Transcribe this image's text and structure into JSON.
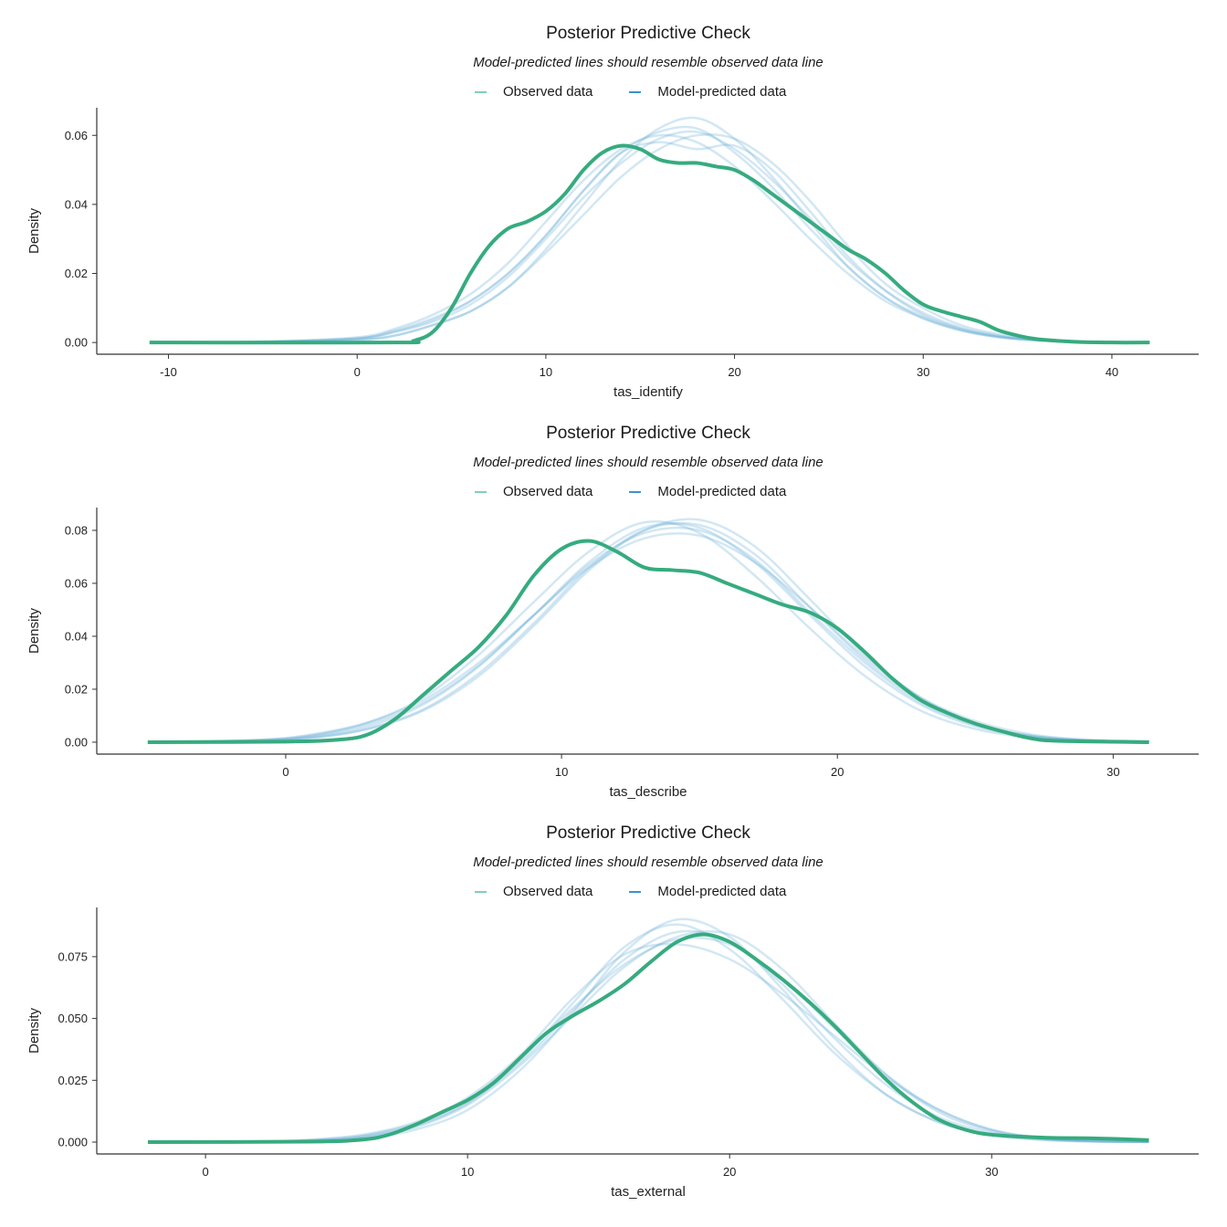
{
  "colors": {
    "observed": "#36ab7f",
    "observed_legend": "#7fd1b0",
    "predicted": "#6baed6",
    "predicted_legend": "#3a94c8"
  },
  "chart_data": [
    {
      "type": "line",
      "title": "Posterior Predictive Check",
      "subtitle": "Model-predicted lines should resemble observed data line",
      "legend": {
        "position": "top",
        "items": [
          "Observed data",
          "Model-predicted data"
        ]
      },
      "xlabel": "tas_identify",
      "ylabel": "Density",
      "xlim": [
        -13.8,
        44.6
      ],
      "ylim": [
        -0.0034,
        0.068
      ],
      "grid": false,
      "xticks": [
        -10,
        0,
        10,
        20,
        30,
        40
      ],
      "xtick_labels": [
        "-10",
        "0",
        "10",
        "20",
        "30",
        "40"
      ],
      "yticks": [
        0,
        0.02,
        0.04,
        0.06
      ],
      "ytick_labels": [
        "0.00",
        "0.02",
        "0.04",
        "0.06"
      ],
      "observed": {
        "name": "Observed data",
        "x": [
          -11,
          2,
          3,
          4,
          5,
          6,
          7,
          8,
          9,
          10,
          11,
          12,
          13,
          14,
          15,
          16,
          17,
          18,
          19,
          20,
          21,
          22,
          23,
          24,
          25,
          26,
          27,
          28,
          29,
          30,
          31,
          32,
          33,
          34,
          35,
          36,
          38,
          40,
          42
        ],
        "y": [
          0,
          0,
          0.0005,
          0.003,
          0.01,
          0.02,
          0.028,
          0.033,
          0.035,
          0.038,
          0.043,
          0.05,
          0.055,
          0.057,
          0.056,
          0.053,
          0.052,
          0.052,
          0.051,
          0.05,
          0.047,
          0.043,
          0.039,
          0.035,
          0.031,
          0.027,
          0.024,
          0.02,
          0.015,
          0.011,
          0.009,
          0.0075,
          0.006,
          0.0035,
          0.002,
          0.001,
          0.0002,
          0,
          0
        ]
      },
      "predicted": {
        "name": "Model-predicted data",
        "x": [
          -11,
          -5,
          0,
          2,
          4,
          6,
          8,
          10,
          12,
          14,
          16,
          18,
          20,
          22,
          24,
          26,
          28,
          30,
          32,
          34,
          36,
          38,
          42
        ],
        "draws": [
          [
            0,
            0.0002,
            0.001,
            0.003,
            0.006,
            0.011,
            0.019,
            0.03,
            0.042,
            0.052,
            0.059,
            0.061,
            0.056,
            0.047,
            0.036,
            0.024,
            0.015,
            0.0086,
            0.0043,
            0.002,
            0.0008,
            0.0003,
            0
          ],
          [
            0,
            0.0001,
            0.0008,
            0.002,
            0.005,
            0.009,
            0.016,
            0.027,
            0.04,
            0.053,
            0.062,
            0.065,
            0.059,
            0.048,
            0.035,
            0.022,
            0.013,
            0.007,
            0.0035,
            0.0015,
            0.0006,
            0.0002,
            0
          ],
          [
            0,
            0.0003,
            0.0015,
            0.004,
            0.008,
            0.014,
            0.023,
            0.035,
            0.047,
            0.056,
            0.06,
            0.058,
            0.051,
            0.041,
            0.03,
            0.02,
            0.012,
            0.007,
            0.0035,
            0.0016,
            0.0006,
            0.0002,
            0
          ],
          [
            0,
            0.0002,
            0.0012,
            0.0035,
            0.007,
            0.012,
            0.02,
            0.031,
            0.044,
            0.055,
            0.058,
            0.056,
            0.057,
            0.05,
            0.038,
            0.025,
            0.015,
            0.008,
            0.004,
            0.0018,
            0.0007,
            0.0002,
            0
          ],
          [
            0,
            0.0001,
            0.0007,
            0.002,
            0.005,
            0.009,
            0.016,
            0.026,
            0.037,
            0.048,
            0.056,
            0.06,
            0.059,
            0.052,
            0.041,
            0.028,
            0.017,
            0.01,
            0.005,
            0.0024,
            0.001,
            0.0003,
            0
          ],
          [
            0,
            0.0002,
            0.0012,
            0.0032,
            0.0065,
            0.012,
            0.02,
            0.031,
            0.044,
            0.055,
            0.061,
            0.062,
            0.055,
            0.045,
            0.033,
            0.022,
            0.013,
            0.0075,
            0.0038,
            0.0017,
            0.0007,
            0.0002,
            0
          ]
        ]
      }
    },
    {
      "type": "line",
      "title": "Posterior Predictive Check",
      "subtitle": "Model-predicted lines should resemble observed data line",
      "legend": {
        "position": "top",
        "items": [
          "Observed data",
          "Model-predicted data"
        ]
      },
      "xlabel": "tas_describe",
      "ylabel": "Density",
      "xlim": [
        -6.85,
        33.1
      ],
      "ylim": [
        -0.0045,
        0.0886
      ],
      "grid": false,
      "xticks": [
        0,
        10,
        20,
        30
      ],
      "xtick_labels": [
        "0",
        "10",
        "20",
        "30"
      ],
      "yticks": [
        0,
        0.02,
        0.04,
        0.06,
        0.08
      ],
      "ytick_labels": [
        "0.00",
        "0.02",
        "0.04",
        "0.06",
        "0.08"
      ],
      "observed": {
        "name": "Observed data",
        "x": [
          -5,
          0,
          2,
          3,
          4,
          5,
          6,
          7,
          8,
          9,
          10,
          11,
          12,
          13,
          14,
          15,
          16,
          17,
          18,
          19,
          20,
          21,
          22,
          23,
          24,
          25,
          26,
          27,
          28,
          31.3
        ],
        "y": [
          0,
          0.0002,
          0.001,
          0.003,
          0.009,
          0.018,
          0.027,
          0.036,
          0.048,
          0.063,
          0.073,
          0.076,
          0.072,
          0.066,
          0.065,
          0.064,
          0.06,
          0.056,
          0.052,
          0.049,
          0.043,
          0.034,
          0.024,
          0.016,
          0.011,
          0.007,
          0.004,
          0.0015,
          0.0005,
          0
        ]
      },
      "predicted": {
        "name": "Model-predicted data",
        "x": [
          -5,
          -1,
          1,
          3,
          5,
          7,
          9,
          11,
          13,
          15,
          17,
          19,
          21,
          23,
          25,
          27,
          29,
          31.3
        ],
        "draws": [
          [
            0,
            0.0006,
            0.0021,
            0.006,
            0.0143,
            0.0286,
            0.048,
            0.068,
            0.081,
            0.081,
            0.068,
            0.048,
            0.0286,
            0.0143,
            0.006,
            0.0021,
            0.0006,
            0.0002
          ],
          [
            0,
            0.0004,
            0.0016,
            0.005,
            0.012,
            0.025,
            0.044,
            0.065,
            0.08,
            0.084,
            0.074,
            0.054,
            0.033,
            0.017,
            0.007,
            0.0025,
            0.0007,
            0.0002
          ],
          [
            0,
            0.0009,
            0.003,
            0.0075,
            0.016,
            0.03,
            0.048,
            0.066,
            0.077,
            0.078,
            0.068,
            0.051,
            0.032,
            0.017,
            0.008,
            0.003,
            0.001,
            0.0003
          ],
          [
            0,
            0.0008,
            0.0027,
            0.0075,
            0.017,
            0.033,
            0.053,
            0.072,
            0.083,
            0.079,
            0.063,
            0.043,
            0.025,
            0.012,
            0.005,
            0.0017,
            0.0005,
            0.0001
          ],
          [
            0,
            0.0005,
            0.0018,
            0.0052,
            0.0125,
            0.026,
            0.045,
            0.066,
            0.08,
            0.082,
            0.071,
            0.051,
            0.031,
            0.016,
            0.0068,
            0.0024,
            0.0007,
            0.0002
          ],
          [
            0,
            0.0007,
            0.0024,
            0.0068,
            0.015,
            0.029,
            0.048,
            0.067,
            0.079,
            0.08,
            0.069,
            0.049,
            0.03,
            0.015,
            0.0065,
            0.0023,
            0.0007,
            0.0002
          ]
        ]
      }
    },
    {
      "type": "line",
      "title": "Posterior Predictive Check",
      "subtitle": "Model-predicted lines should resemble observed data line",
      "legend": {
        "position": "top",
        "items": [
          "Observed data",
          "Model-predicted data"
        ]
      },
      "xlabel": "tas_external",
      "ylabel": "Density",
      "xlim": [
        -4.15,
        37.9
      ],
      "ylim": [
        -0.0048,
        0.0949
      ],
      "grid": false,
      "xticks": [
        0,
        10,
        20,
        30
      ],
      "xtick_labels": [
        "0",
        "10",
        "20",
        "30"
      ],
      "yticks": [
        0,
        0.025,
        0.05,
        0.075
      ],
      "ytick_labels": [
        "0.000",
        "0.025",
        "0.050",
        "0.075"
      ],
      "observed": {
        "name": "Observed data",
        "x": [
          -2.2,
          4,
          6,
          7,
          8,
          9,
          10,
          11,
          12,
          13,
          14,
          15,
          16,
          17,
          18,
          19,
          20,
          21,
          22,
          23,
          24,
          25,
          26,
          27,
          28,
          29,
          30,
          32,
          34,
          36
        ],
        "y": [
          0,
          0.0002,
          0.001,
          0.003,
          0.007,
          0.012,
          0.017,
          0.024,
          0.034,
          0.044,
          0.051,
          0.057,
          0.064,
          0.073,
          0.081,
          0.084,
          0.081,
          0.074,
          0.066,
          0.057,
          0.047,
          0.036,
          0.025,
          0.016,
          0.009,
          0.005,
          0.003,
          0.0018,
          0.0015,
          0.0008
        ]
      },
      "predicted": {
        "name": "Model-predicted data",
        "x": [
          -2.2,
          2,
          4,
          6,
          8,
          10,
          12,
          14,
          16,
          18,
          20,
          22,
          24,
          26,
          28,
          30,
          32,
          34,
          36
        ],
        "draws": [
          [
            0,
            0.0001,
            0.0006,
            0.002,
            0.0064,
            0.0156,
            0.032,
            0.053,
            0.074,
            0.085,
            0.081,
            0.064,
            0.042,
            0.023,
            0.01,
            0.0038,
            0.0012,
            0.0003,
            0.0001
          ],
          [
            0,
            0.0001,
            0.0004,
            0.0015,
            0.005,
            0.013,
            0.029,
            0.052,
            0.077,
            0.09,
            0.083,
            0.062,
            0.038,
            0.019,
            0.008,
            0.0028,
            0.0008,
            0.0002,
            0.0001
          ],
          [
            0,
            0.0002,
            0.001,
            0.003,
            0.008,
            0.018,
            0.035,
            0.058,
            0.076,
            0.08,
            0.074,
            0.06,
            0.043,
            0.026,
            0.013,
            0.005,
            0.0016,
            0.0005,
            0.0001
          ],
          [
            0,
            0.0001,
            0.0005,
            0.0018,
            0.006,
            0.015,
            0.031,
            0.051,
            0.071,
            0.083,
            0.084,
            0.07,
            0.048,
            0.027,
            0.012,
            0.0045,
            0.0014,
            0.0004,
            0.0001
          ],
          [
            0,
            0.0001,
            0.0007,
            0.0023,
            0.007,
            0.016,
            0.033,
            0.056,
            0.079,
            0.088,
            0.078,
            0.058,
            0.036,
            0.019,
            0.008,
            0.003,
            0.001,
            0.0003,
            0.0001
          ],
          [
            0,
            0.0002,
            0.0008,
            0.0026,
            0.0075,
            0.017,
            0.034,
            0.054,
            0.072,
            0.082,
            0.08,
            0.066,
            0.046,
            0.027,
            0.013,
            0.005,
            0.0018,
            0.0006,
            0.0002
          ]
        ]
      }
    }
  ]
}
